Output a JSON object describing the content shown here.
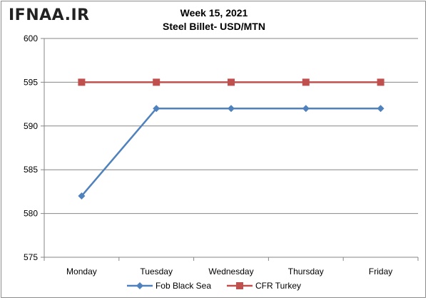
{
  "watermark": "IFNAA.IR",
  "chart_data": {
    "type": "line",
    "title": "Week 15, 2021",
    "subtitle": "Steel Billet- USD/MTN",
    "categories": [
      "Monday",
      "Tuesday",
      "Wednesday",
      "Thursday",
      "Friday"
    ],
    "ylim": [
      575,
      600
    ],
    "yticks": [
      575,
      580,
      585,
      590,
      595,
      600
    ],
    "grid": true,
    "legend_position": "bottom",
    "series": [
      {
        "name": "Fob Black Sea",
        "values": [
          582,
          592,
          592,
          592,
          592
        ],
        "color": "#4f81bd",
        "marker": "diamond"
      },
      {
        "name": "CFR Turkey",
        "values": [
          595,
          595,
          595,
          595,
          595
        ],
        "color": "#c0504d",
        "marker": "square"
      }
    ]
  }
}
